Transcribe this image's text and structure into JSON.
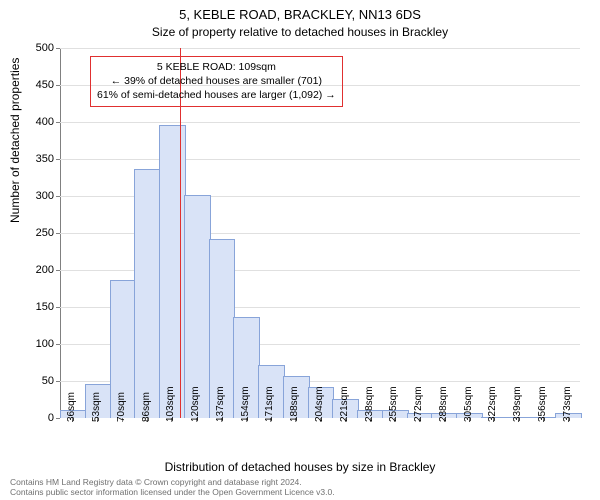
{
  "title": "5, KEBLE ROAD, BRACKLEY, NN13 6DS",
  "subtitle": "Size of property relative to detached houses in Brackley",
  "chart": {
    "type": "histogram",
    "xlabel": "Distribution of detached houses by size in Brackley",
    "ylabel": "Number of detached properties",
    "ylim": [
      0,
      500
    ],
    "ytick_step": 50,
    "bar_fill": "#d9e3f7",
    "bar_stroke": "#88a4d9",
    "grid_color": "#e0e0e0",
    "axis_color": "#808080",
    "background": "#ffffff",
    "vline_color": "#e03030",
    "vline_x": 109,
    "categories": [
      "36sqm",
      "53sqm",
      "70sqm",
      "86sqm",
      "103sqm",
      "120sqm",
      "137sqm",
      "154sqm",
      "171sqm",
      "188sqm",
      "204sqm",
      "221sqm",
      "238sqm",
      "255sqm",
      "272sqm",
      "288sqm",
      "305sqm",
      "322sqm",
      "339sqm",
      "356sqm",
      "373sqm"
    ],
    "x_values": [
      36,
      53,
      70,
      86,
      103,
      120,
      137,
      154,
      171,
      188,
      204,
      221,
      238,
      255,
      272,
      288,
      305,
      322,
      339,
      356,
      373
    ],
    "values": [
      10,
      45,
      185,
      335,
      395,
      300,
      240,
      135,
      70,
      55,
      40,
      25,
      10,
      10,
      5,
      5,
      5,
      0,
      0,
      0,
      5
    ],
    "bar_width_ratio": 1.0
  },
  "annotation": {
    "line1": "5 KEBLE ROAD: 109sqm",
    "line2": "← 39% of detached houses are smaller (701)",
    "line3": "61% of semi-detached houses are larger (1,092) →",
    "border_color": "#e03030"
  },
  "footer": {
    "line1": "Contains HM Land Registry data © Crown copyright and database right 2024.",
    "line2": "Contains public sector information licensed under the Open Government Licence v3.0.",
    "color": "#707070"
  }
}
